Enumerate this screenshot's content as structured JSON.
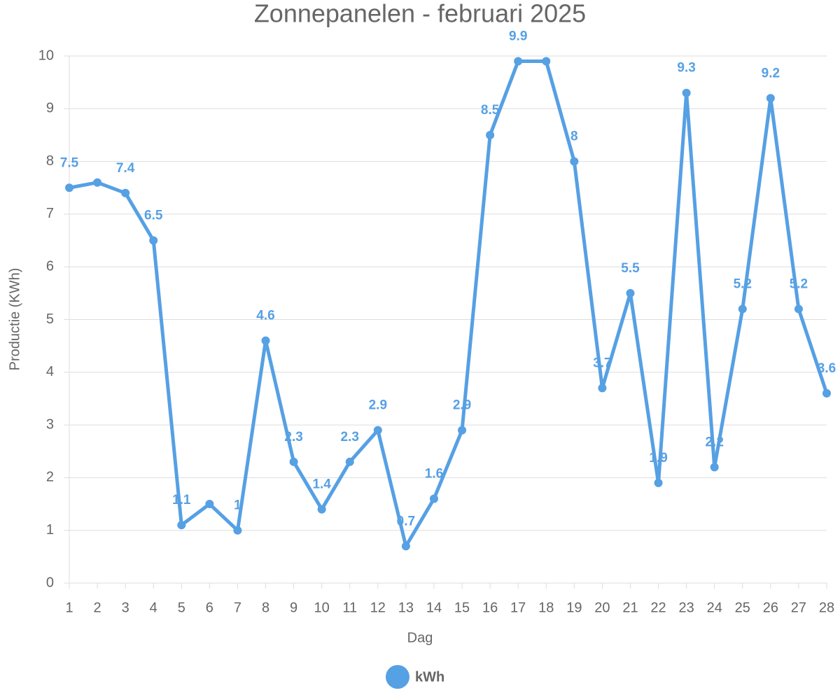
{
  "chart_data": {
    "type": "line",
    "title": "Zonnepanelen - februari 2025",
    "x_label": "Dag",
    "y_label": "Productie (KWh)",
    "x": [
      1,
      2,
      3,
      4,
      5,
      6,
      7,
      8,
      9,
      10,
      11,
      12,
      13,
      14,
      15,
      16,
      17,
      18,
      19,
      20,
      21,
      22,
      23,
      24,
      25,
      26,
      27,
      28
    ],
    "series": [
      {
        "name": "kWh",
        "color": "#56a0e4",
        "values": [
          7.5,
          7.6,
          7.4,
          6.5,
          1.1,
          1.5,
          1,
          4.6,
          2.3,
          1.4,
          2.3,
          2.9,
          0.7,
          1.6,
          2.9,
          8.5,
          9.9,
          9.9,
          8,
          3.7,
          5.5,
          1.9,
          9.3,
          2.2,
          5.2,
          9.2,
          5.2,
          3.6
        ],
        "value_labels": [
          "7.5",
          null,
          "7.4",
          "6.5",
          "1.1",
          null,
          "1",
          "4.6",
          "2.3",
          "1.4",
          "2.3",
          "2.9",
          "0.7",
          "1.6",
          "2.9",
          "8.5",
          "9.9",
          null,
          "8",
          "3.7",
          "5.5",
          "1.9",
          "9.3",
          "2.2",
          "5.2",
          "9.2",
          "5.2",
          "3.6"
        ]
      }
    ],
    "xlim": [
      1,
      28
    ],
    "xticks": [
      1,
      2,
      3,
      4,
      5,
      6,
      7,
      8,
      9,
      10,
      11,
      12,
      13,
      14,
      15,
      16,
      17,
      18,
      19,
      20,
      21,
      22,
      23,
      24,
      25,
      26,
      27,
      28
    ],
    "ylim": [
      0,
      10
    ],
    "yticks": [
      0,
      1,
      2,
      3,
      4,
      5,
      6,
      7,
      8,
      9,
      10
    ],
    "grid": true,
    "legend": "bottom"
  }
}
